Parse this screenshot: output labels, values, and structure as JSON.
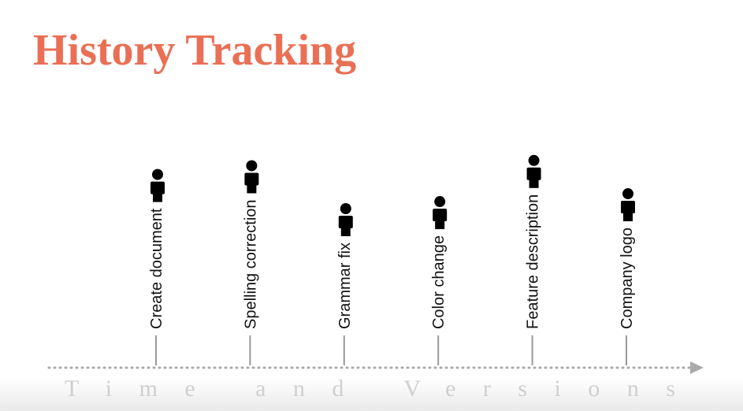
{
  "title": "History Tracking",
  "events": [
    {
      "label": "Create document"
    },
    {
      "label": "Spelling correction"
    },
    {
      "label": "Grammar fix"
    },
    {
      "label": "Color change"
    },
    {
      "label": "Feature description"
    },
    {
      "label": "Company logo"
    }
  ],
  "axis_label": "Time and Versions"
}
